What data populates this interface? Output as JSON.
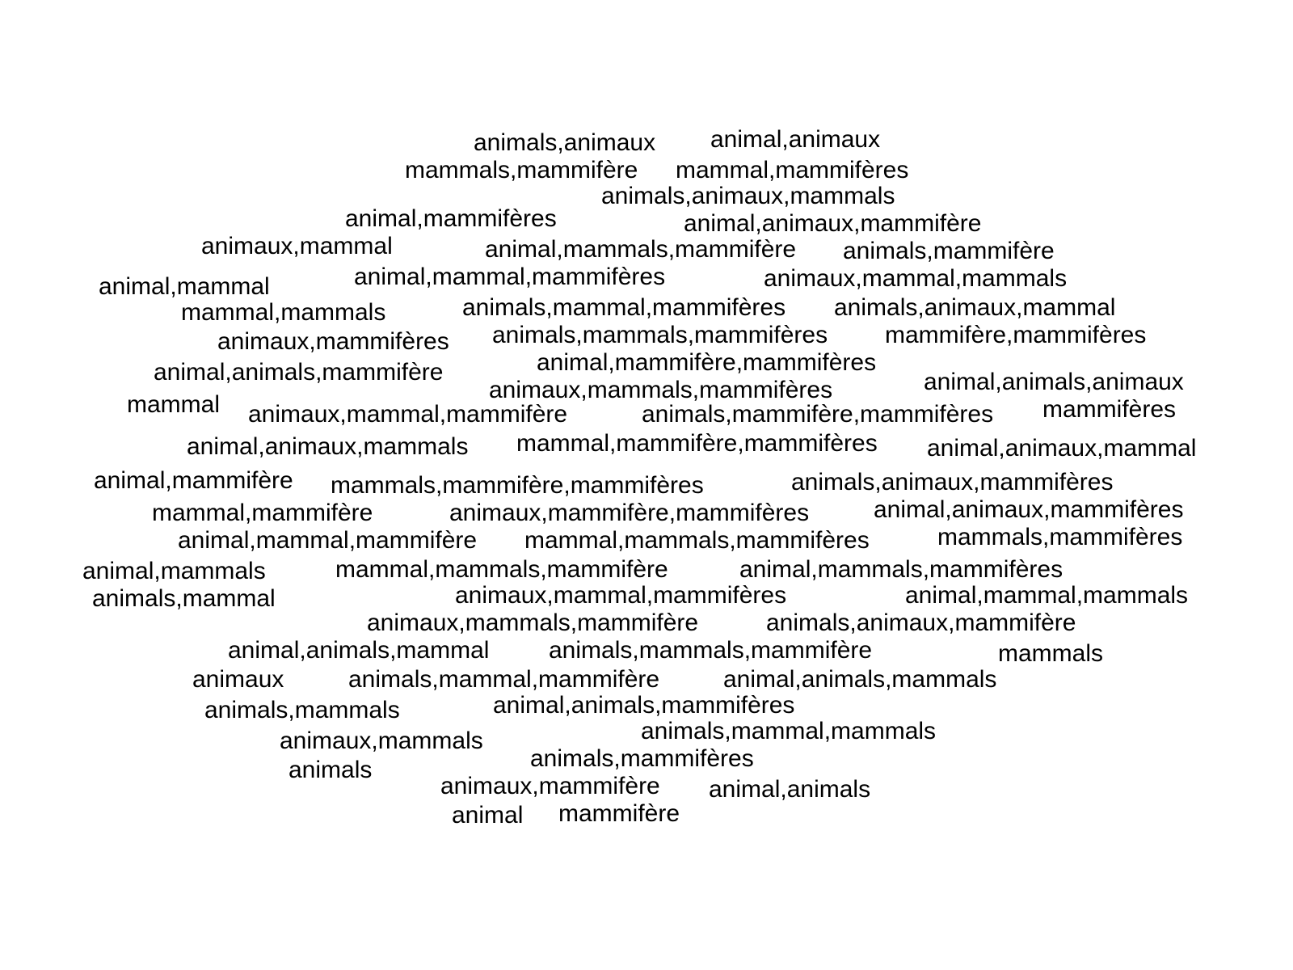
{
  "text_color": "#000000",
  "background_color": "#ffffff",
  "words": [
    "animals,animaux",
    "animal,animaux",
    "mammals,mammifère",
    "mammal,mammifères",
    "animals,animaux,mammals",
    "animal,mammifères",
    "animal,animaux,mammifère",
    "animaux,mammal",
    "animal,mammals,mammifère",
    "animals,mammifère",
    "animal,mammal",
    "animal,mammal,mammifères",
    "animaux,mammal,mammals",
    "mammal,mammals",
    "animals,mammal,mammifères",
    "animals,animaux,mammal",
    "animaux,mammifères",
    "animals,mammals,mammifères",
    "mammifère,mammifères",
    "animal,animals,mammifère",
    "animal,mammifère,mammifères",
    "animaux,mammals,mammifères",
    "animal,animals,animaux",
    "mammal",
    "animaux,mammal,mammifère",
    "animals,mammifère,mammifères",
    "mammifères",
    "animal,animaux,mammals",
    "mammal,mammifère,mammifères",
    "animal,animaux,mammal",
    "animal,mammifère",
    "mammals,mammifère,mammifères",
    "animals,animaux,mammifères",
    "mammal,mammifère",
    "animaux,mammifère,mammifères",
    "animal,animaux,mammifères",
    "animal,mammal,mammifère",
    "mammal,mammals,mammifères",
    "mammals,mammifères",
    "animal,mammals",
    "mammal,mammals,mammifère",
    "animal,mammals,mammifères",
    "animals,mammal",
    "animaux,mammal,mammifères",
    "animal,mammal,mammals",
    "animaux,mammals,mammifère",
    "animals,animaux,mammifère",
    "animal,animals,mammal",
    "animals,mammals,mammifère",
    "mammals",
    "animaux",
    "animals,mammal,mammifère",
    "animal,animals,mammals",
    "animals,mammals",
    "animal,animals,mammifères",
    "animaux,mammals",
    "animals,mammal,mammals",
    "animals",
    "animals,mammifères",
    "animaux,mammifère",
    "animal,animals",
    "animal",
    "mammifère"
  ]
}
